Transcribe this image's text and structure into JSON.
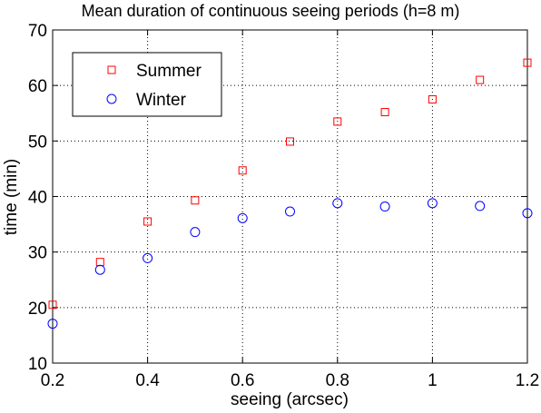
{
  "chart_data": {
    "type": "scatter",
    "title": "Mean duration of continuous seeing periods (h=8 m)",
    "xlabel": "seeing (arcsec)",
    "ylabel": "time (min)",
    "xlim": [
      0.2,
      1.2
    ],
    "ylim": [
      10,
      70
    ],
    "xticks": [
      "0.2",
      "0.4",
      "0.6",
      "0.8",
      "1",
      "1.2"
    ],
    "yticks": [
      "10",
      "20",
      "30",
      "40",
      "50",
      "60",
      "70"
    ],
    "grid": true,
    "grid_style": "dotted",
    "legend_position": "top-left",
    "x": [
      0.2,
      0.3,
      0.4,
      0.5,
      0.6,
      0.7,
      0.8,
      0.9,
      1.0,
      1.1,
      1.2
    ],
    "series": [
      {
        "name": "Summer",
        "marker": "square",
        "color": "#ff0000",
        "values": [
          20.5,
          28.2,
          35.5,
          39.3,
          44.7,
          49.9,
          53.5,
          55.2,
          57.5,
          61.0,
          64.1
        ]
      },
      {
        "name": "Winter",
        "marker": "circle",
        "color": "#0000ff",
        "values": [
          17.1,
          26.8,
          28.9,
          33.6,
          36.1,
          37.3,
          38.8,
          38.2,
          38.8,
          38.3,
          37.0
        ]
      }
    ]
  }
}
